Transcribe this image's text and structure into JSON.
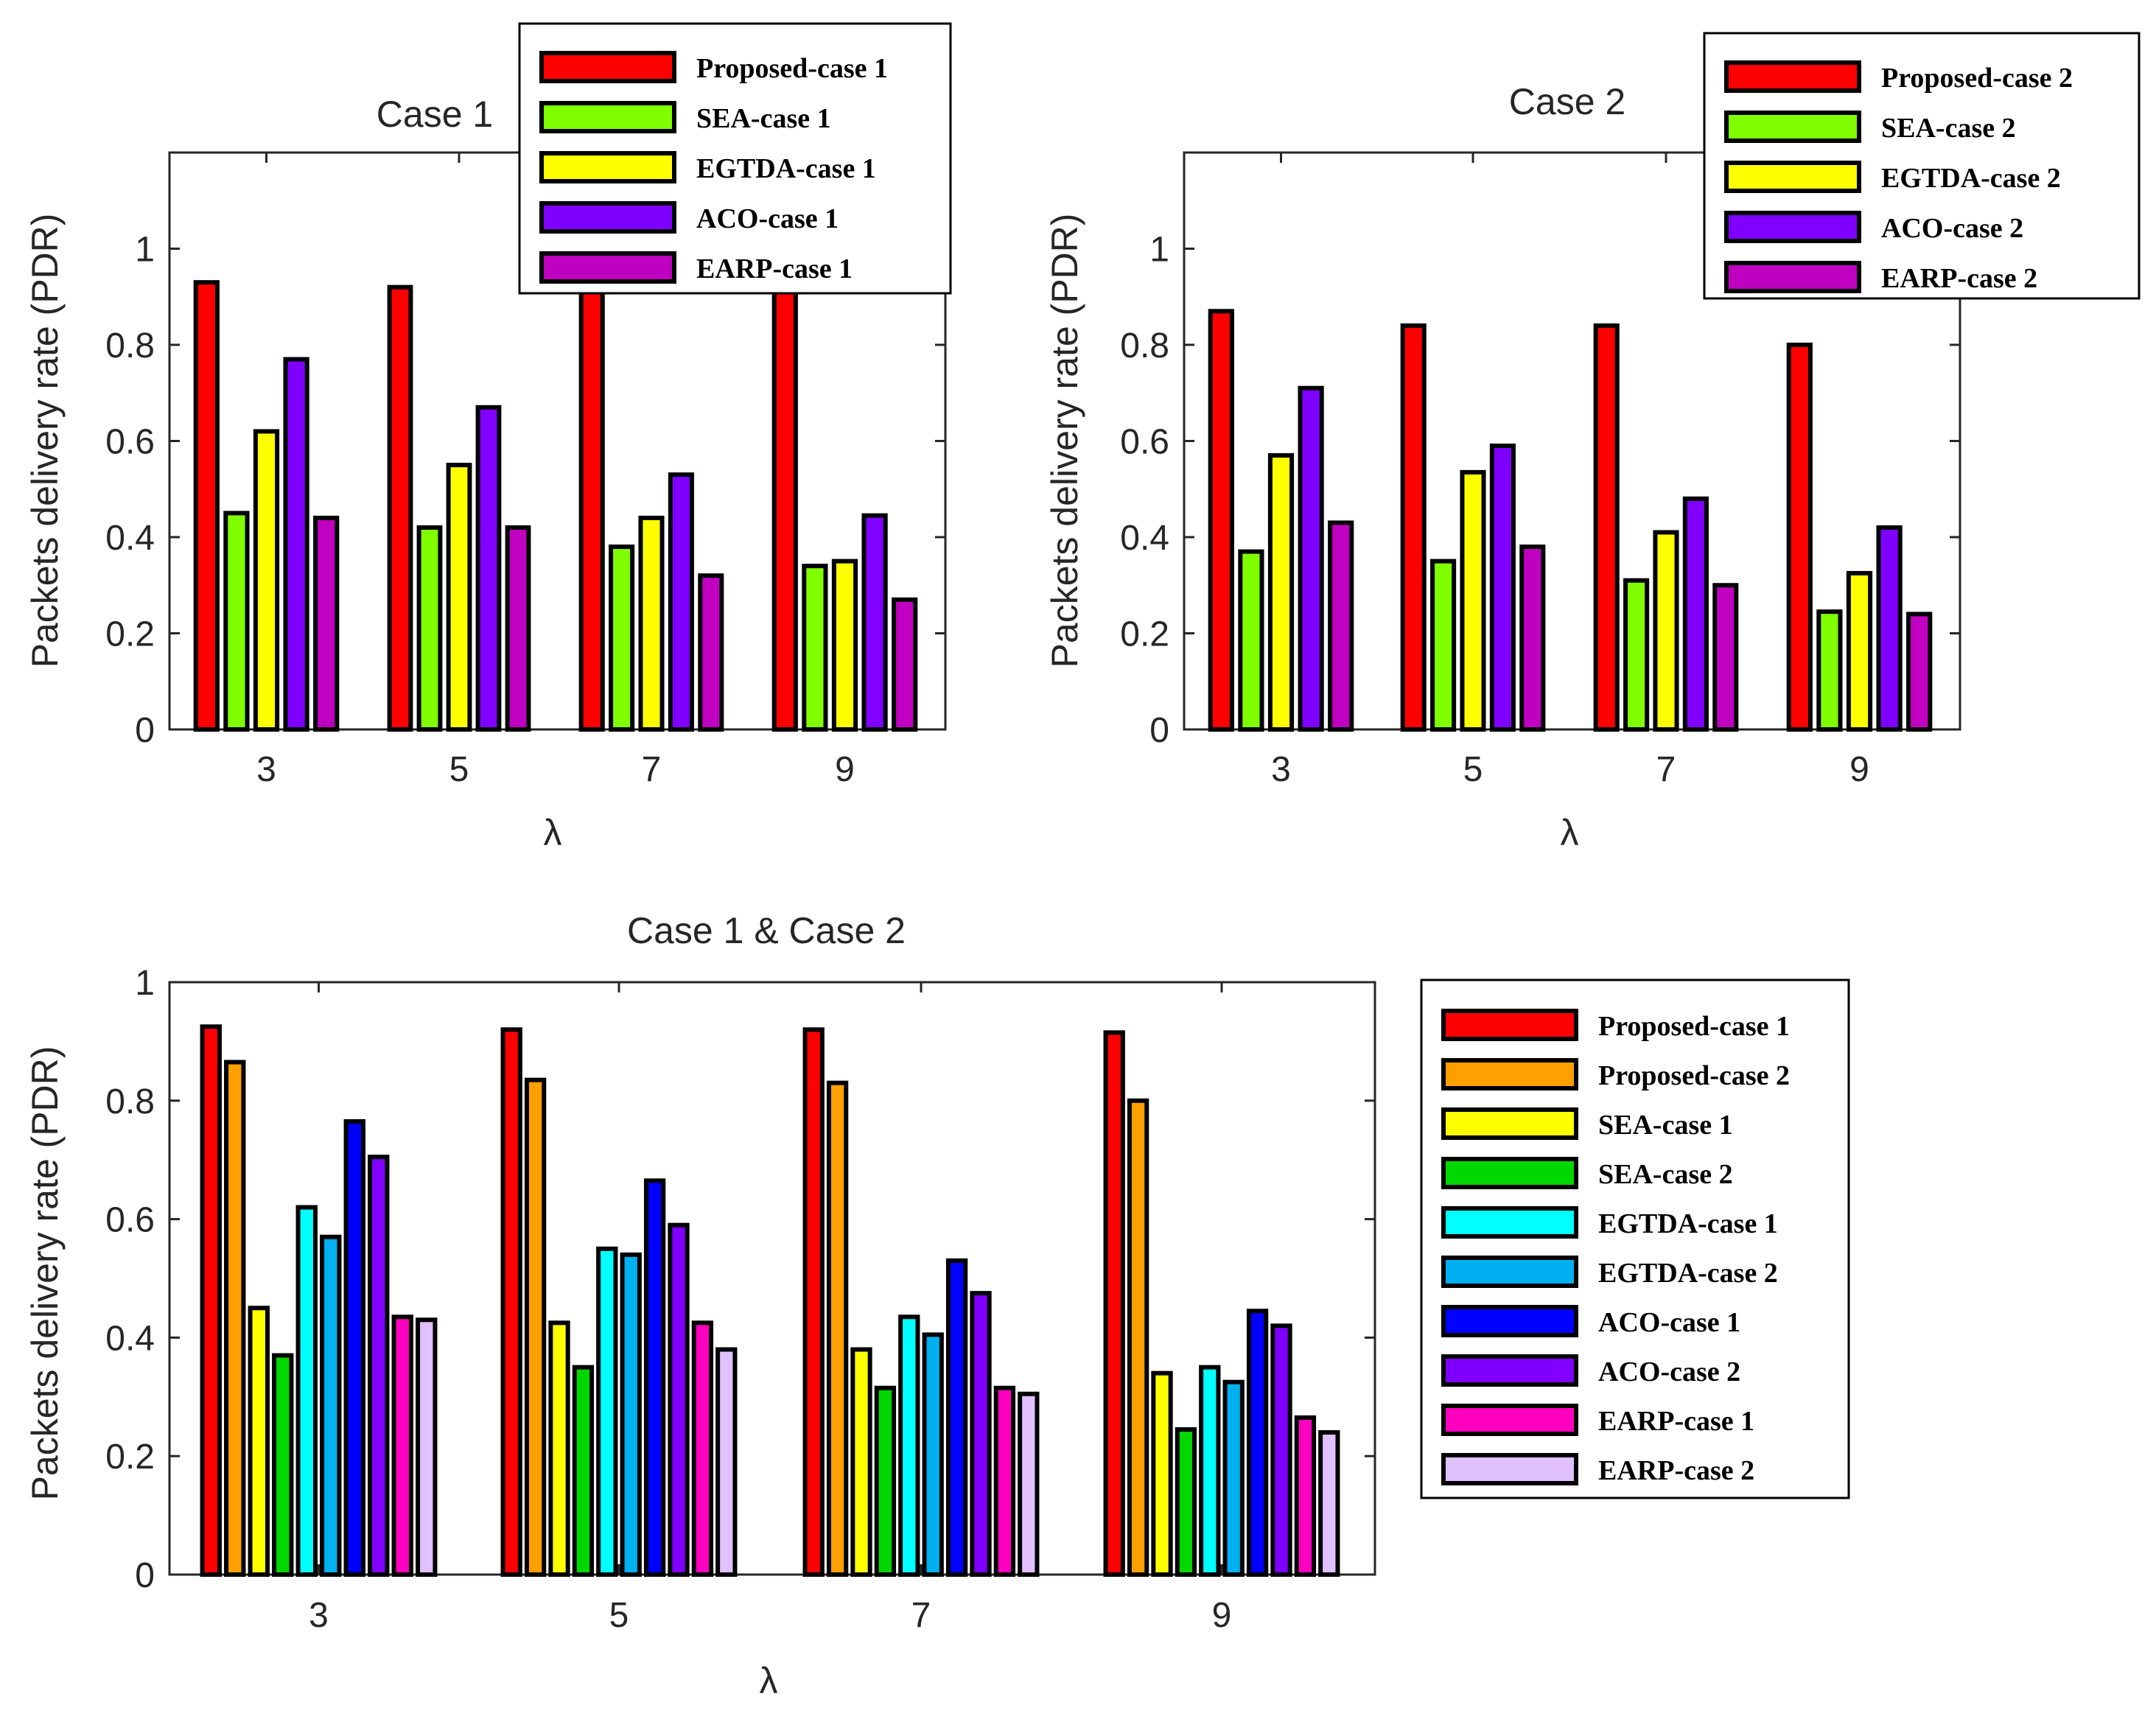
{
  "colors": {
    "proposed_case1": "#ff0000",
    "proposed_case2": "#ff9f00",
    "sea_case1": "#7fff00",
    "sea_case2": "#00d700",
    "sea_case1_combined": "#ffff00",
    "egtda_case1": "#ffff00",
    "egtda_case1_combined": "#00ffff",
    "egtda_case2_combined": "#00b0f0",
    "aco_case1": "#8000ff",
    "aco_case1_combined": "#0000ff",
    "aco_case2": "#8000ff",
    "earp_case1": "#c000c0",
    "earp_case1_combined": "#ff00c0",
    "earp_case2_combined": "#e0c0ff"
  },
  "chart_data": [
    {
      "id": "case1",
      "type": "bar",
      "title": "Case 1",
      "xlabel": "λ",
      "ylabel": "Packets delivery rate (PDR)",
      "ylim": [
        0,
        1.2
      ],
      "yticks": [
        "0",
        "0.2",
        "0.4",
        "0.6",
        "0.8",
        "1"
      ],
      "categories": [
        "3",
        "5",
        "7",
        "9"
      ],
      "legend_position": "top-right",
      "series": [
        {
          "name": "Proposed-case 1",
          "color": "#ff0000",
          "values": [
            0.93,
            0.92,
            0.92,
            0.91
          ]
        },
        {
          "name": "SEA-case 1",
          "color": "#7fff00",
          "values": [
            0.45,
            0.42,
            0.38,
            0.34
          ]
        },
        {
          "name": "EGTDA-case 1",
          "color": "#ffff00",
          "values": [
            0.62,
            0.55,
            0.44,
            0.35
          ]
        },
        {
          "name": "ACO-case 1",
          "color": "#8000ff",
          "values": [
            0.77,
            0.67,
            0.53,
            0.445
          ]
        },
        {
          "name": "EARP-case 1",
          "color": "#c000c0",
          "values": [
            0.44,
            0.42,
            0.32,
            0.27
          ]
        }
      ]
    },
    {
      "id": "case2",
      "type": "bar",
      "title": "Case 2",
      "xlabel": "λ",
      "ylabel": "Packets delivery rate (PDR)",
      "ylim": [
        0,
        1.2
      ],
      "yticks": [
        "0",
        "0.2",
        "0.4",
        "0.6",
        "0.8",
        "1"
      ],
      "categories": [
        "3",
        "5",
        "7",
        "9"
      ],
      "legend_position": "top-right",
      "series": [
        {
          "name": "Proposed-case 2",
          "color": "#ff0000",
          "values": [
            0.87,
            0.84,
            0.84,
            0.8
          ]
        },
        {
          "name": "SEA-case 2",
          "color": "#7fff00",
          "values": [
            0.37,
            0.35,
            0.31,
            0.245
          ]
        },
        {
          "name": "EGTDA-case 2",
          "color": "#ffff00",
          "values": [
            0.57,
            0.535,
            0.41,
            0.325
          ]
        },
        {
          "name": "ACO-case 2",
          "color": "#8000ff",
          "values": [
            0.71,
            0.59,
            0.48,
            0.42
          ]
        },
        {
          "name": "EARP-case 2",
          "color": "#c000c0",
          "values": [
            0.43,
            0.38,
            0.3,
            0.24
          ]
        }
      ]
    },
    {
      "id": "combined",
      "type": "bar",
      "title": "Case 1 & Case 2",
      "xlabel": "λ",
      "ylabel": "Packets delivery rate (PDR)",
      "ylim": [
        0,
        1
      ],
      "yticks": [
        "0",
        "0.2",
        "0.4",
        "0.6",
        "0.8",
        "1"
      ],
      "categories": [
        "3",
        "5",
        "7",
        "9"
      ],
      "legend_position": "outside-right",
      "series": [
        {
          "name": "Proposed-case 1",
          "color": "#ff0000",
          "values": [
            0.925,
            0.92,
            0.92,
            0.915
          ]
        },
        {
          "name": "Proposed-case 2",
          "color": "#ff9f00",
          "values": [
            0.865,
            0.835,
            0.83,
            0.8
          ]
        },
        {
          "name": "SEA-case 1",
          "color": "#ffff00",
          "values": [
            0.45,
            0.425,
            0.38,
            0.34
          ]
        },
        {
          "name": "SEA-case 2",
          "color": "#00d700",
          "values": [
            0.37,
            0.35,
            0.315,
            0.245
          ]
        },
        {
          "name": "EGTDA-case 1",
          "color": "#00ffff",
          "values": [
            0.62,
            0.55,
            0.435,
            0.35
          ]
        },
        {
          "name": "EGTDA-case 2",
          "color": "#00b0f0",
          "values": [
            0.57,
            0.54,
            0.405,
            0.325
          ]
        },
        {
          "name": "ACO-case 1",
          "color": "#0000ff",
          "values": [
            0.765,
            0.665,
            0.53,
            0.445
          ]
        },
        {
          "name": "ACO-case 2",
          "color": "#8000ff",
          "values": [
            0.705,
            0.59,
            0.475,
            0.42
          ]
        },
        {
          "name": "EARP-case 1",
          "color": "#ff00c0",
          "values": [
            0.435,
            0.425,
            0.315,
            0.265
          ]
        },
        {
          "name": "EARP-case 2",
          "color": "#e0c0ff",
          "values": [
            0.43,
            0.38,
            0.305,
            0.24
          ]
        }
      ]
    }
  ]
}
